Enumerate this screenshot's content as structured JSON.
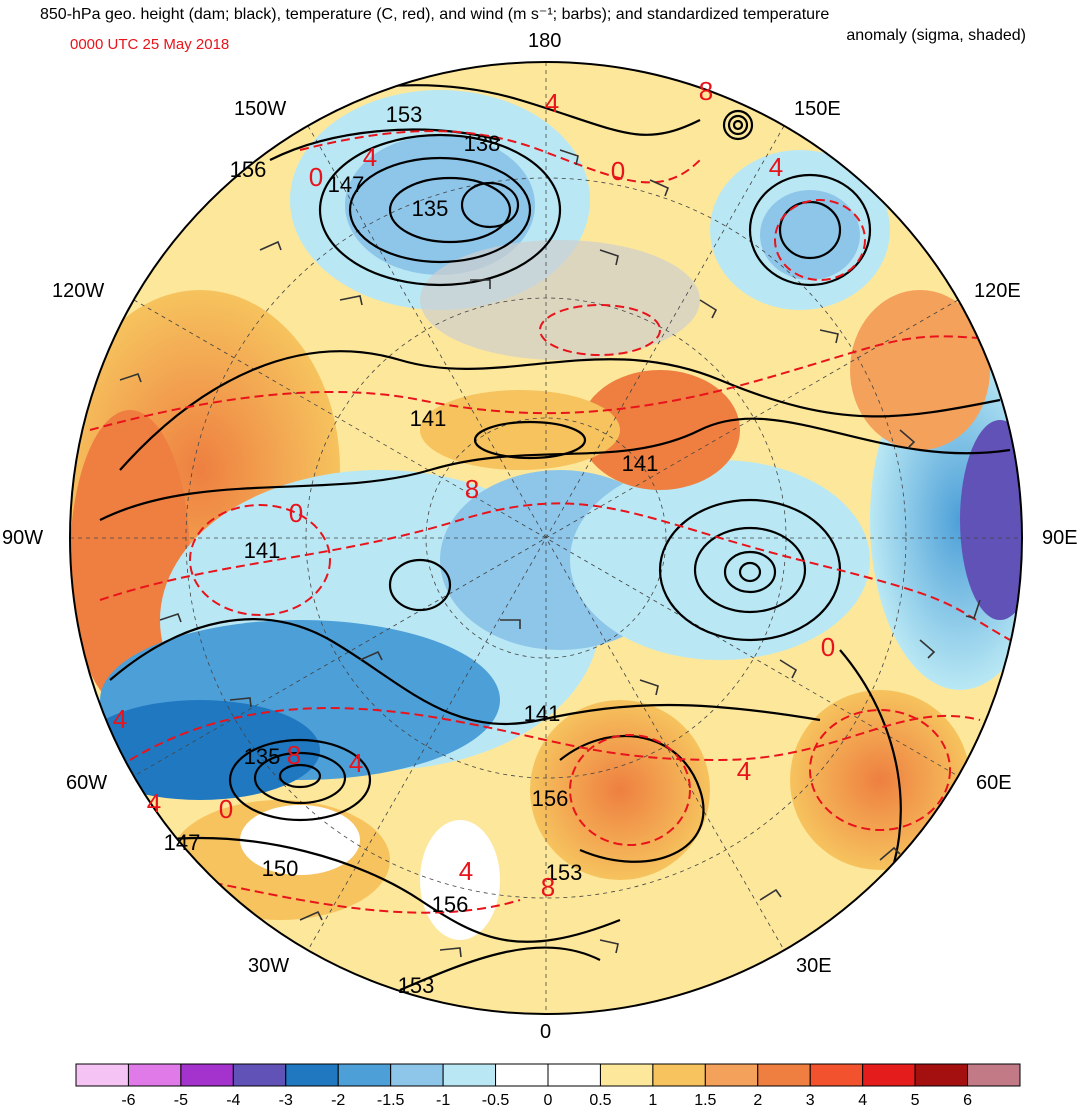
{
  "header": {
    "title_line1": "850-hPa geo. height (dam; black), temperature (C, red), and wind (m s⁻¹; barbs); and standardized temperature",
    "title_line2": "anomaly (sigma, shaded)",
    "valid_time": "0000 UTC 25 May 2018"
  },
  "map": {
    "longitude_labels": [
      "180",
      "150E",
      "120E",
      "90E",
      "60E",
      "30E",
      "0",
      "30W",
      "60W",
      "90W",
      "120W",
      "150W"
    ],
    "height_labels": [
      "153",
      "138",
      "156",
      "147",
      "135",
      "141",
      "141",
      "141",
      "135",
      "147",
      "150",
      "156",
      "153",
      "141",
      "156",
      "153"
    ],
    "temperature_labels": [
      "4",
      "8",
      "0",
      "4",
      "4",
      "8",
      "0",
      "4",
      "0",
      "4",
      "8",
      "4",
      "4",
      "8",
      "4",
      "0",
      "0"
    ]
  },
  "colorbar": {
    "tick_labels": [
      "-6",
      "-5",
      "-4",
      "-3",
      "-2",
      "-1.5",
      "-1",
      "-0.5",
      "0",
      "0.5",
      "1",
      "1.5",
      "2",
      "3",
      "4",
      "5",
      "6"
    ],
    "colors": [
      "#f6c4f4",
      "#e07ae9",
      "#a333cc",
      "#6152b8",
      "#1f78c0",
      "#4d9fd8",
      "#8ec6ea",
      "#b9e8f4",
      "#ffffff",
      "#ffffff",
      "#fde79b",
      "#f6c35e",
      "#f4a15b",
      "#ee7f40",
      "#f2532e",
      "#e51c1c",
      "#a41010",
      "#c27a87"
    ]
  },
  "palette": {
    "height_contour": "#000000",
    "temperature_contour": "#e8131b",
    "grid": "#444444",
    "land_fill": "#cfcfcf"
  }
}
